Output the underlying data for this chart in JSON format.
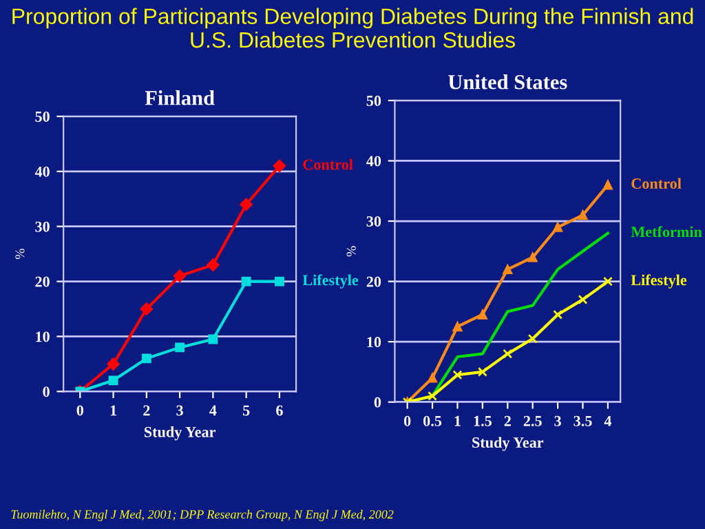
{
  "chart_data": [
    {
      "type": "line",
      "title": "Finland",
      "xlabel": "Study Year",
      "ylabel": "%",
      "annotations": [
        "Proportion of Participants Developing Diabetes During the Finnish and U.S. Diabetes Prevention Studies",
        "Tuomilehto, N Engl J Med, 2001; DPP Research Group, N Engl J Med, 2002"
      ],
      "categories": [
        "0",
        "1",
        "2",
        "3",
        "4",
        "5",
        "6"
      ],
      "series": [
        {
          "name": "Control",
          "color": "#ff0000",
          "marker": "diamond",
          "values": [
            0,
            5,
            15,
            21,
            23,
            34,
            41
          ]
        },
        {
          "name": "Lifestyle",
          "color": "#00dddd",
          "marker": "square",
          "values": [
            0,
            2,
            6,
            8,
            9.5,
            20,
            20
          ]
        }
      ],
      "ylim": [
        0,
        50
      ],
      "yticks": [
        0,
        10,
        20,
        30,
        40,
        50
      ],
      "grid": "y",
      "legend": false
    },
    {
      "type": "line",
      "title": "United States",
      "xlabel": "Study Year",
      "ylabel": "%",
      "categories": [
        "0",
        "0.5",
        "1",
        "1.5",
        "2",
        "2.5",
        "3",
        "3.5",
        "4"
      ],
      "series": [
        {
          "name": "Control",
          "color": "#ff8c1a",
          "marker": "triangle",
          "values": [
            0,
            4,
            12.5,
            14.5,
            22,
            24,
            29,
            31,
            36
          ]
        },
        {
          "name": "Metformin",
          "color": "#00dd00",
          "marker": "none",
          "values": [
            0,
            1,
            7.5,
            8,
            15,
            16,
            22,
            25,
            28
          ]
        },
        {
          "name": "Lifestyle",
          "color": "#ffff00",
          "marker": "cross",
          "values": [
            0,
            1,
            4.5,
            5,
            8,
            10.5,
            14.5,
            17,
            20
          ]
        }
      ],
      "ylim": [
        0,
        50
      ],
      "yticks": [
        0,
        10,
        20,
        30,
        40,
        50
      ],
      "grid": "y",
      "legend": false
    }
  ]
}
